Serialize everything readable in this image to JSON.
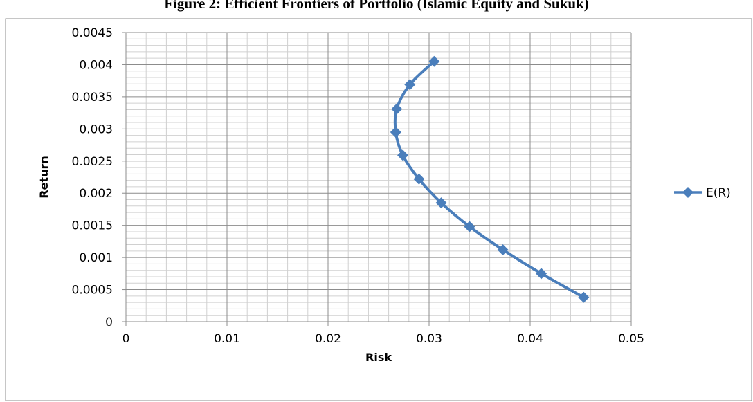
{
  "figure": {
    "title": "Figure 2: Efficient Frontiers of Portfolio (Islamic Equity and Sukuk)"
  },
  "chart_data": {
    "type": "line",
    "xlabel": "Risk",
    "ylabel": "Return",
    "xlim": [
      0,
      0.05
    ],
    "ylim": [
      0,
      0.0045
    ],
    "x_ticks": [
      "0",
      "0.01",
      "0.02",
      "0.03",
      "0.04",
      "0.05"
    ],
    "y_ticks": [
      "0",
      "0.0005",
      "0.001",
      "0.0015",
      "0.002",
      "0.0025",
      "0.003",
      "0.0035",
      "0.004",
      "0.0045"
    ],
    "x_ticks_values": [
      0,
      0.01,
      0.02,
      0.03,
      0.04,
      0.05
    ],
    "y_ticks_values": [
      0,
      0.0005,
      0.001,
      0.0015,
      0.002,
      0.0025,
      0.003,
      0.0035,
      0.004,
      0.0045
    ],
    "grid": true,
    "legend_position": "right",
    "series": [
      {
        "name": "E(R)",
        "color": "#4a7ebb",
        "marker": "diamond",
        "points": [
          {
            "x": 0.0453,
            "y": 0.00038
          },
          {
            "x": 0.0411,
            "y": 0.00075
          },
          {
            "x": 0.0373,
            "y": 0.00112
          },
          {
            "x": 0.034,
            "y": 0.00148
          },
          {
            "x": 0.0312,
            "y": 0.00185
          },
          {
            "x": 0.029,
            "y": 0.00222
          },
          {
            "x": 0.0274,
            "y": 0.00259
          },
          {
            "x": 0.0267,
            "y": 0.00295
          },
          {
            "x": 0.0268,
            "y": 0.00331
          },
          {
            "x": 0.0281,
            "y": 0.00369
          },
          {
            "x": 0.0305,
            "y": 0.00405
          }
        ]
      }
    ]
  }
}
